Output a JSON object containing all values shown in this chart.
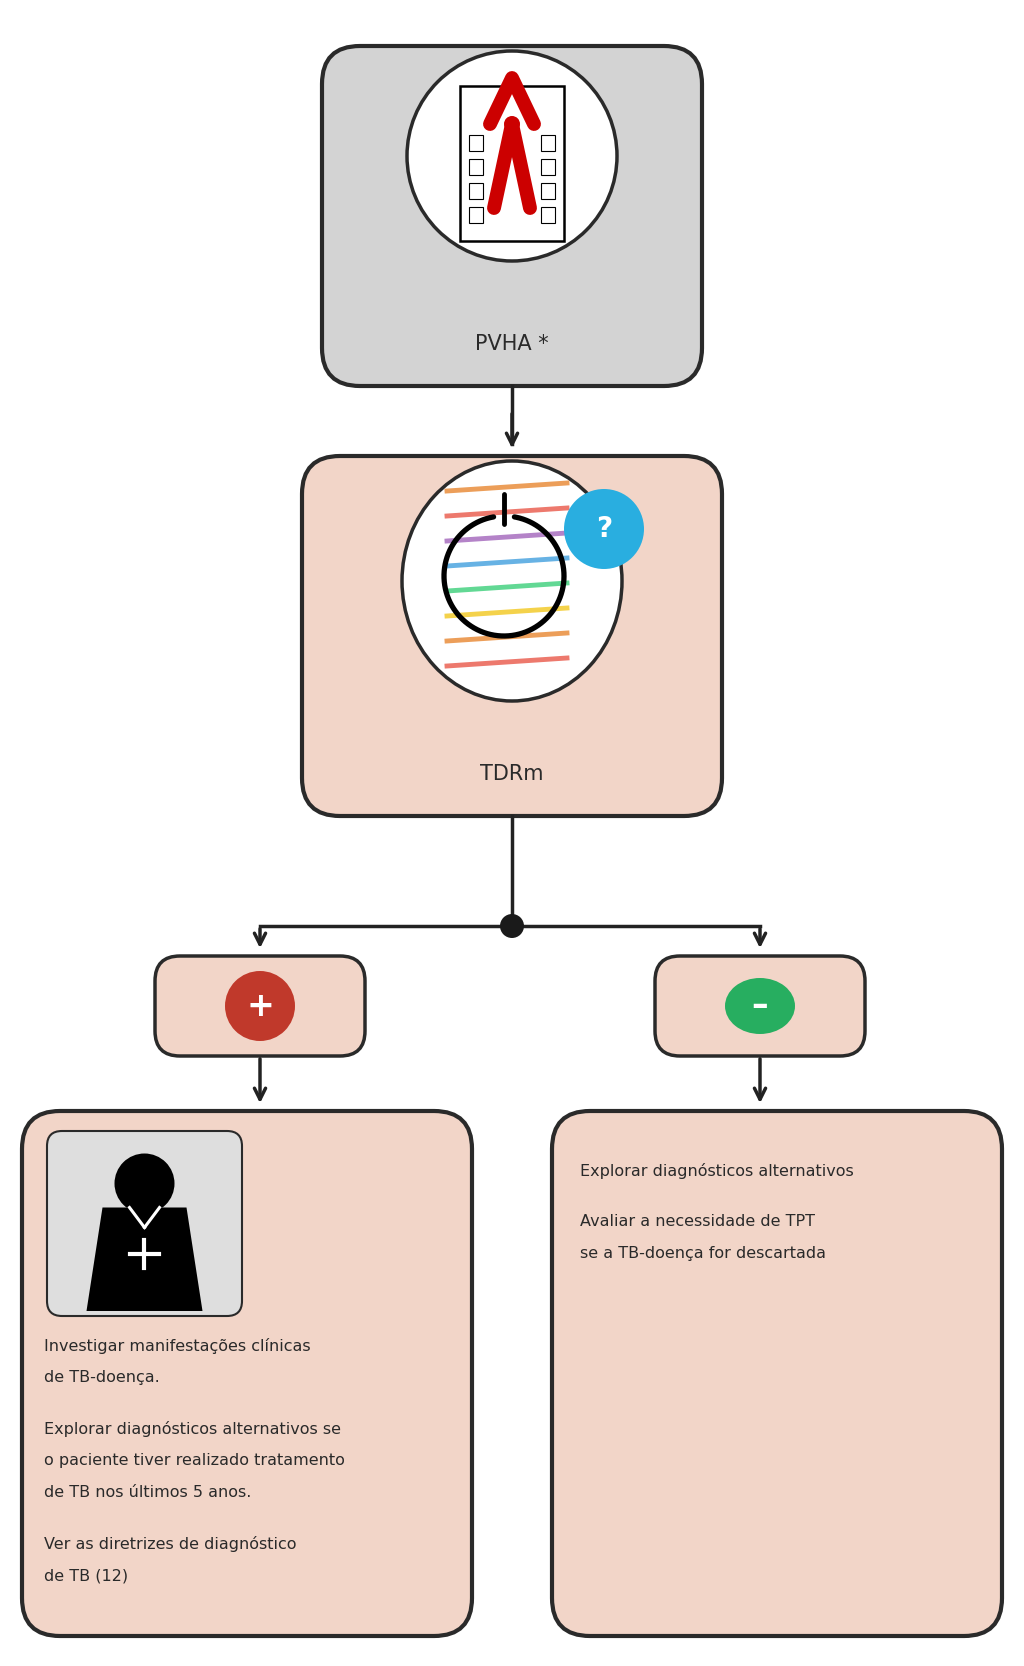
{
  "bg_color": "#ffffff",
  "box_color_gray": "#d3d3d3",
  "box_color_salmon": "#f2d5c8",
  "border_color": "#2a2a2a",
  "text_color": "#2a2a2a",
  "pvha_label": "PVHA *",
  "tdrm_label": "TDRm",
  "positive_texts_para1": "Investigar manifestações clínicas\nde TB-doença.",
  "positive_texts_para2": "Explorar diagnósticos alternativos se\no paciente tiver realizado tratamento\nde TB nos últimos 5 anos.",
  "positive_texts_para3": "Ver as diretrizes de diagnóstico\nde TB (12)",
  "negative_texts_para1": "Explorar diagnósticos alternativos",
  "negative_texts_para2": "Avaliar a necessidade de TPT\nse a TB-doença for descartada",
  "red_color": "#c0392b",
  "green_color": "#27ae60",
  "blue_color": "#29aee0",
  "arrow_color": "#222222",
  "dot_color": "#1a1a1a",
  "white": "#ffffff",
  "black": "#000000",
  "light_gray": "#e8e8e8"
}
